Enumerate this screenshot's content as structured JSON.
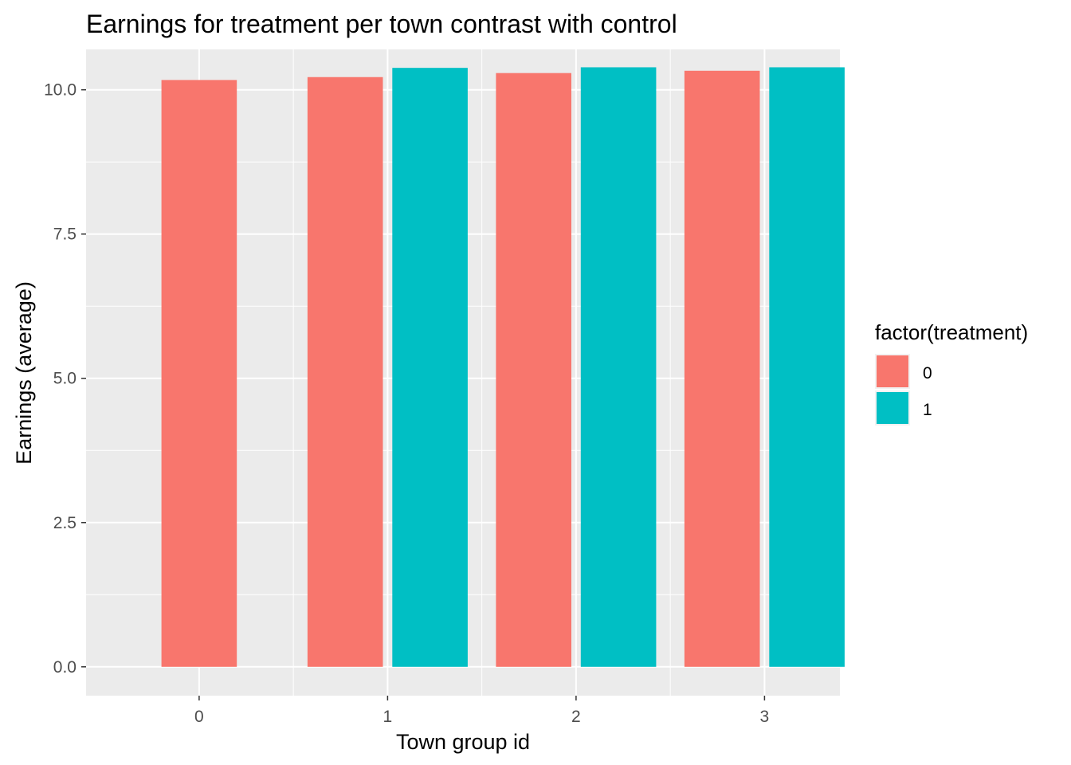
{
  "chart_data": {
    "type": "bar",
    "title": "Earnings for treatment per town contrast with control",
    "xlabel": "Town group id",
    "ylabel": "Earnings (average)",
    "categories": [
      "0",
      "1",
      "2",
      "3"
    ],
    "yticks": [
      "0.0",
      "2.5",
      "5.0",
      "7.5",
      "10.0"
    ],
    "ylim": [
      -0.5,
      10.7
    ],
    "grid": true,
    "legend": {
      "title": "factor(treatment)",
      "position": "right",
      "entries": [
        {
          "label": "0",
          "color": "#F8766D"
        },
        {
          "label": "1",
          "color": "#00BFC4"
        }
      ]
    },
    "series": [
      {
        "name": "0",
        "color": "#F8766D",
        "values": [
          10.17,
          10.22,
          10.29,
          10.33
        ]
      },
      {
        "name": "1",
        "color": "#00BFC4",
        "values": [
          null,
          10.38,
          10.39,
          10.39
        ]
      }
    ]
  }
}
